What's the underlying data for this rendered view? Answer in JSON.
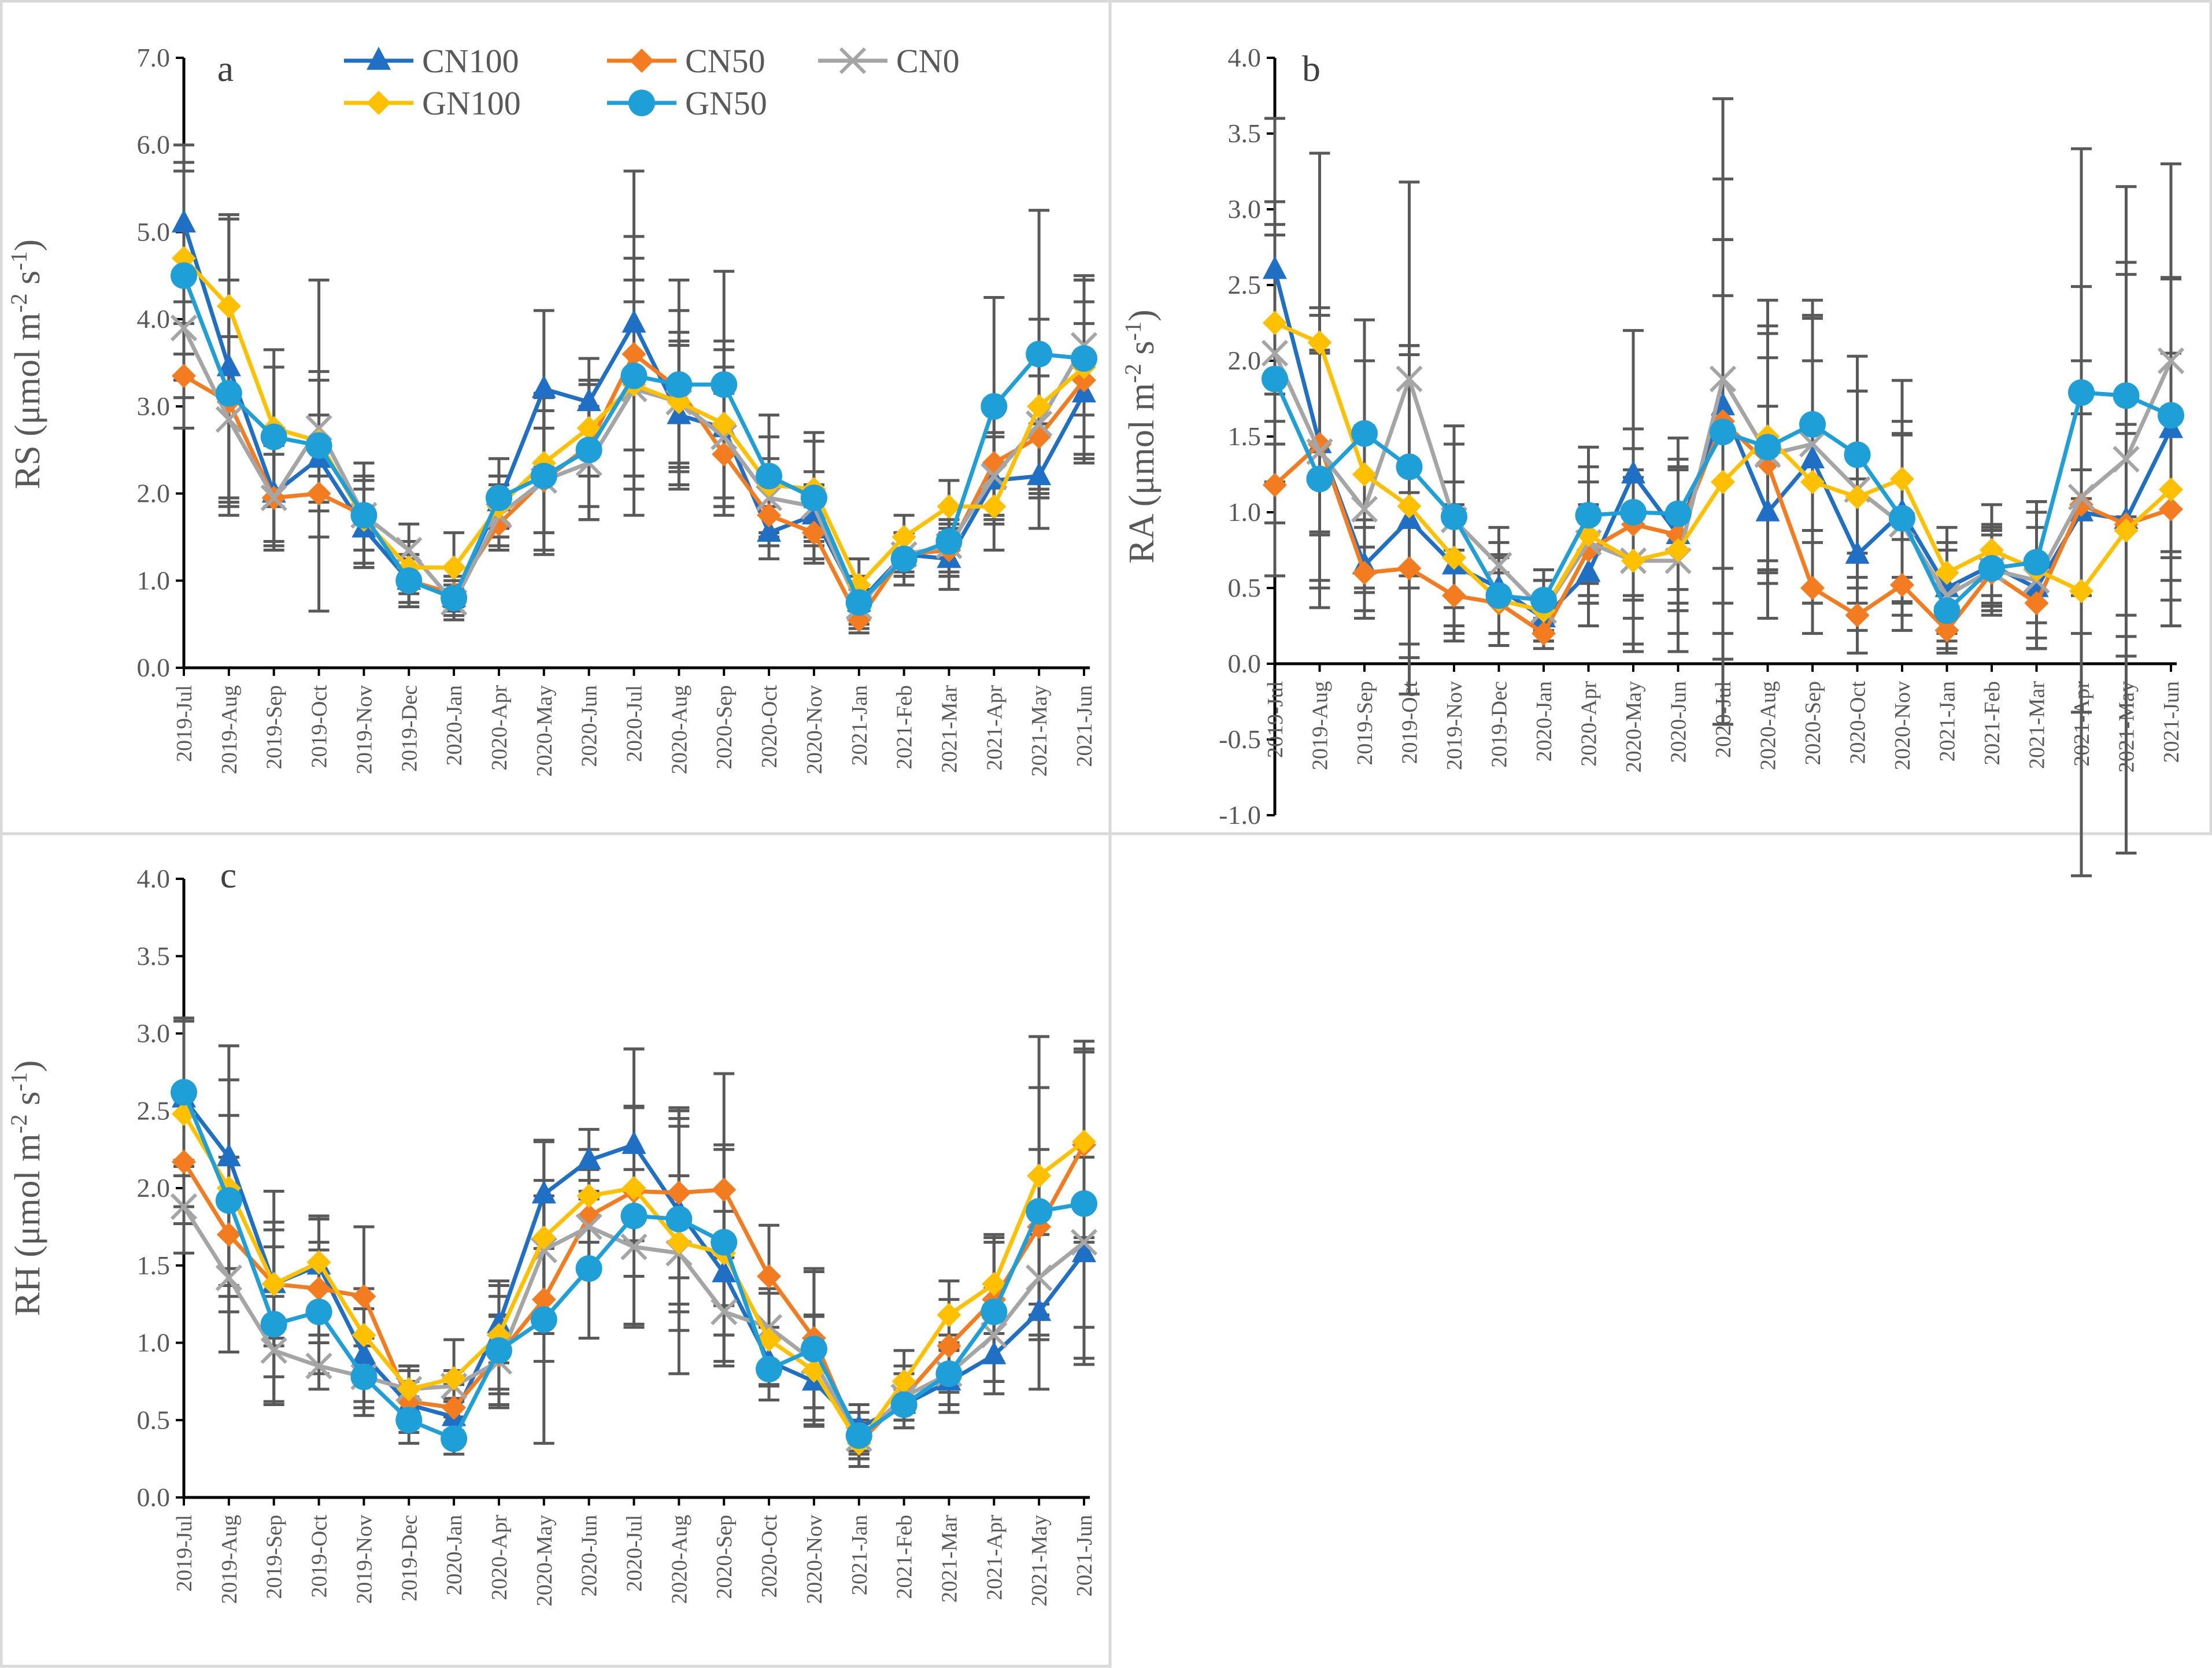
{
  "figure": {
    "series_colors": {
      "CN100": "#1F6FC5",
      "CN50": "#F47C20",
      "CN0": "#A5A5A5",
      "GN100": "#FFC000",
      "GN50": "#1F9FD8"
    },
    "errorbar_color": "#595959",
    "frame_color": "#D9D9D9"
  },
  "chart_data": [
    {
      "type": "line",
      "panel": "a",
      "ylabel": "RS (μmol m⁻² s⁻¹)",
      "ylabel_parts": {
        "main": "RS (μmol m",
        "sup1": "-2",
        "mid": " s",
        "sup2": "-1",
        "end": ")"
      },
      "ylim": [
        0,
        7
      ],
      "ystep": 1,
      "yticks": [
        "0.0",
        "1.0",
        "2.0",
        "3.0",
        "4.0",
        "5.0",
        "6.0",
        "7.0"
      ],
      "categories": [
        "2019-Jul",
        "2019-Aug",
        "2019-Sep",
        "2019-Oct",
        "2019-Nov",
        "2019-Dec",
        "2020-Jan",
        "2020-Apr",
        "2020-May",
        "2020-Jun",
        "2020-Jul",
        "2020-Aug",
        "2020-Sep",
        "2020-Oct",
        "2020-Nov",
        "2021-Jan",
        "2021-Feb",
        "2021-Mar",
        "2021-Apr",
        "2021-May",
        "2021-Jun"
      ],
      "legend": [
        "CN100",
        "CN50",
        "CN0",
        "GN100",
        "GN50"
      ],
      "series": [
        {
          "name": "CN100",
          "marker": "triangle",
          "values": [
            5.1,
            3.45,
            2.0,
            2.4,
            1.6,
            1.0,
            0.8,
            1.9,
            3.2,
            3.05,
            3.95,
            2.9,
            2.75,
            1.55,
            1.75,
            0.75,
            1.3,
            1.25,
            2.15,
            2.2,
            3.15
          ],
          "errors": [
            0.9,
            1.7,
            0.6,
            0.5,
            0.45,
            0.3,
            0.15,
            0.3,
            0.9,
            0.5,
            1.75,
            0.8,
            0.9,
            0.3,
            0.35,
            0.2,
            0.2,
            0.35,
            0.5,
            0.6,
            0.8
          ]
        },
        {
          "name": "CN50",
          "marker": "diamond",
          "values": [
            3.35,
            3.05,
            1.95,
            2.0,
            1.75,
            1.0,
            0.85,
            1.65,
            2.15,
            2.55,
            3.6,
            3.2,
            2.45,
            1.75,
            1.55,
            0.55,
            1.3,
            1.35,
            2.35,
            2.65,
            3.3
          ],
          "errors": [
            0.6,
            1.1,
            0.5,
            0.5,
            0.4,
            0.25,
            0.15,
            0.3,
            0.8,
            0.7,
            1.1,
            0.9,
            0.7,
            0.35,
            0.3,
            0.15,
            0.25,
            0.3,
            0.6,
            0.7,
            0.9
          ]
        },
        {
          "name": "CN0",
          "marker": "x",
          "values": [
            3.9,
            2.85,
            1.95,
            2.75,
            1.75,
            1.35,
            0.75,
            1.75,
            2.15,
            2.35,
            3.2,
            3.05,
            2.65,
            1.95,
            1.85,
            0.7,
            1.3,
            1.4,
            2.2,
            2.8,
            3.7
          ],
          "errors": [
            0.8,
            0.95,
            0.6,
            0.55,
            0.4,
            0.3,
            0.15,
            0.35,
            0.6,
            0.65,
            1.0,
            0.7,
            0.8,
            0.45,
            0.4,
            0.2,
            0.25,
            0.3,
            0.5,
            0.75,
            0.8
          ]
        },
        {
          "name": "GN100",
          "marker": "diamond",
          "values": [
            4.7,
            4.15,
            2.75,
            2.6,
            1.7,
            1.15,
            1.15,
            1.85,
            2.35,
            2.75,
            3.25,
            3.05,
            2.8,
            2.1,
            2.05,
            0.95,
            1.5,
            1.85,
            1.85,
            3.0,
            3.45
          ],
          "errors": [
            1.1,
            1.05,
            0.9,
            0.8,
            0.5,
            0.3,
            0.4,
            0.35,
            0.8,
            0.55,
            1.2,
            0.8,
            0.95,
            0.55,
            0.55,
            0.3,
            0.25,
            0.3,
            0.5,
            1.0,
            1.0
          ]
        },
        {
          "name": "GN50",
          "marker": "circle",
          "values": [
            4.5,
            3.15,
            2.65,
            2.55,
            1.75,
            1.0,
            0.8,
            1.95,
            2.2,
            2.5,
            3.35,
            3.25,
            3.25,
            2.2,
            1.95,
            0.75,
            1.25,
            1.45,
            3.0,
            3.6,
            3.55
          ],
          "errors": [
            1.2,
            1.3,
            0.8,
            1.9,
            0.6,
            0.3,
            0.25,
            0.45,
            0.9,
            0.8,
            1.6,
            1.2,
            1.3,
            0.7,
            0.75,
            0.3,
            0.3,
            0.4,
            1.25,
            1.65,
            0.9
          ]
        }
      ]
    },
    {
      "type": "line",
      "panel": "b",
      "ylabel": "RA (μmol m⁻² s⁻¹)",
      "ylabel_parts": {
        "main": "RA (μmol m",
        "sup1": "-2",
        "mid": " s",
        "sup2": "-1",
        "end": ")"
      },
      "ylim": [
        -1,
        4
      ],
      "ystep": 0.5,
      "yticks": [
        "-1.0",
        "-0.5",
        "0.0",
        "0.5",
        "1.0",
        "1.5",
        "2.0",
        "2.5",
        "3.0",
        "3.5",
        "4.0"
      ],
      "categories": [
        "2019-Jul",
        "2019-Aug",
        "2019-Sep",
        "2019-Oct",
        "2019-Nov",
        "2019-Dec",
        "2020-Jan",
        "2020-Apr",
        "2020-May",
        "2020-Jun",
        "2020-Jul",
        "2020-Aug",
        "2020-Sep",
        "2020-Oct",
        "2020-Nov",
        "2021-Jan",
        "2021-Feb",
        "2021-Mar",
        "2021-Apr",
        "2021-May",
        "2021-Jun"
      ],
      "series": [
        {
          "name": "CN100",
          "marker": "triangle",
          "values": [
            2.6,
            1.45,
            0.65,
            0.95,
            0.65,
            0.5,
            0.3,
            0.6,
            1.25,
            0.85,
            1.7,
            1.0,
            1.35,
            0.72,
            1.0,
            0.5,
            0.65,
            0.5,
            1.0,
            0.95,
            1.55
          ],
          "errors": [
            1.0,
            0.9,
            0.3,
            1.15,
            0.4,
            0.3,
            0.15,
            0.35,
            0.95,
            0.45,
            1.5,
            0.7,
            0.95,
            0.5,
            0.6,
            0.3,
            0.25,
            0.4,
            2.4,
            2.2,
            1.0
          ]
        },
        {
          "name": "CN50",
          "marker": "diamond",
          "values": [
            1.18,
            1.45,
            0.6,
            0.63,
            0.45,
            0.4,
            0.2,
            0.75,
            0.92,
            0.85,
            1.6,
            1.32,
            0.5,
            0.32,
            0.52,
            0.22,
            0.6,
            0.4,
            1.05,
            0.92,
            1.02
          ],
          "errors": [
            0.6,
            0.6,
            0.3,
            0.5,
            0.3,
            0.2,
            0.1,
            0.3,
            0.5,
            0.5,
            1.2,
            0.7,
            0.3,
            0.25,
            0.3,
            0.15,
            0.25,
            0.3,
            0.6,
            0.6,
            0.6
          ]
        },
        {
          "name": "CN0",
          "marker": "x",
          "values": [
            2.05,
            1.4,
            1.02,
            1.88,
            0.95,
            0.65,
            0.35,
            0.8,
            0.68,
            0.68,
            1.88,
            1.38,
            1.45,
            1.15,
            0.92,
            0.45,
            0.62,
            0.55,
            1.1,
            1.35,
            2.0
          ],
          "errors": [
            0.85,
            0.9,
            0.55,
            1.3,
            0.5,
            0.25,
            0.2,
            0.4,
            0.55,
            0.6,
            1.85,
            0.85,
            0.95,
            0.65,
            0.6,
            0.3,
            0.3,
            0.45,
            0.9,
            1.3,
            1.3
          ]
        },
        {
          "name": "GN100",
          "marker": "diamond",
          "values": [
            2.25,
            2.12,
            1.25,
            1.04,
            0.7,
            0.42,
            0.35,
            0.85,
            0.68,
            0.75,
            1.2,
            1.5,
            1.2,
            1.1,
            1.22,
            0.6,
            0.75,
            0.62,
            0.48,
            0.88,
            1.15
          ],
          "errors": [
            0.8,
            1.25,
            0.75,
            1.0,
            0.5,
            0.3,
            0.2,
            0.45,
            0.6,
            0.55,
            1.6,
            0.9,
            0.8,
            0.7,
            0.65,
            0.3,
            0.3,
            0.45,
            0.8,
            0.7,
            0.9
          ]
        },
        {
          "name": "GN50",
          "marker": "circle",
          "values": [
            1.88,
            1.22,
            1.52,
            1.3,
            0.97,
            0.45,
            0.42,
            0.98,
            1.0,
            0.99,
            1.53,
            1.43,
            1.58,
            1.38,
            0.96,
            0.35,
            0.63,
            0.67,
            1.79,
            1.77,
            1.64
          ],
          "errors": [
            0.95,
            0.85,
            0.75,
            0.8,
            0.6,
            0.25,
            0.2,
            0.45,
            0.55,
            0.5,
            0.9,
            0.75,
            0.7,
            0.65,
            0.55,
            0.25,
            0.25,
            0.4,
            0.7,
            0.8,
            0.9
          ]
        }
      ]
    },
    {
      "type": "line",
      "panel": "c",
      "ylabel": "RH (μmol m⁻² s⁻¹)",
      "ylabel_parts": {
        "main": "RH (μmol m",
        "sup1": "-2",
        "mid": " s",
        "sup2": "-1",
        "end": ")"
      },
      "ylim": [
        0,
        4
      ],
      "ystep": 0.5,
      "yticks": [
        "0.0",
        "0.5",
        "1.0",
        "1.5",
        "2.0",
        "2.5",
        "3.0",
        "3.5",
        "4.0"
      ],
      "categories": [
        "2019-Jul",
        "2019-Aug",
        "2019-Sep",
        "2019-Oct",
        "2019-Nov",
        "2019-Dec",
        "2020-Jan",
        "2020-Apr",
        "2020-May",
        "2020-Jun",
        "2020-Jul",
        "2020-Aug",
        "2020-Sep",
        "2020-Oct",
        "2020-Nov",
        "2021-Jan",
        "2021-Feb",
        "2021-Mar",
        "2021-Apr",
        "2021-May",
        "2021-Jun"
      ],
      "series": [
        {
          "name": "CN100",
          "marker": "triangle",
          "values": [
            2.58,
            2.2,
            1.38,
            1.5,
            0.92,
            0.6,
            0.52,
            1.12,
            1.96,
            2.18,
            2.28,
            1.85,
            1.45,
            0.88,
            0.75,
            0.45,
            0.6,
            0.75,
            0.92,
            1.2,
            1.58
          ],
          "errors": [
            0.5,
            0.72,
            0.35,
            0.3,
            0.3,
            0.15,
            0.12,
            0.25,
            0.35,
            0.2,
            0.62,
            0.6,
            0.4,
            0.15,
            0.25,
            0.15,
            0.1,
            0.2,
            0.25,
            0.5,
            0.72
          ]
        },
        {
          "name": "CN50",
          "marker": "diamond",
          "values": [
            2.17,
            1.7,
            1.38,
            1.35,
            1.3,
            0.62,
            0.58,
            0.92,
            1.28,
            1.82,
            1.98,
            1.97,
            1.99,
            1.43,
            1.03,
            0.35,
            0.65,
            0.98,
            1.28,
            1.75,
            2.28
          ],
          "errors": [
            0.4,
            0.5,
            0.4,
            0.3,
            0.45,
            0.2,
            0.15,
            0.25,
            0.4,
            0.3,
            0.55,
            0.55,
            0.75,
            0.33,
            0.45,
            0.1,
            0.2,
            0.3,
            0.4,
            0.5,
            0.6
          ]
        },
        {
          "name": "CN0",
          "marker": "x",
          "values": [
            1.88,
            1.42,
            0.95,
            0.85,
            0.78,
            0.7,
            0.72,
            0.88,
            1.6,
            1.75,
            1.62,
            1.58,
            1.2,
            1.1,
            0.88,
            0.38,
            0.65,
            0.8,
            1.05,
            1.42,
            1.65
          ],
          "errors": [
            0.3,
            0.48,
            0.35,
            0.15,
            0.2,
            0.15,
            0.1,
            0.3,
            0.45,
            0.3,
            0.5,
            0.5,
            0.35,
            0.25,
            0.3,
            0.1,
            0.15,
            0.2,
            0.3,
            0.4,
            0.55
          ]
        },
        {
          "name": "GN100",
          "marker": "diamond",
          "values": [
            2.48,
            2.0,
            1.38,
            1.52,
            1.05,
            0.7,
            0.77,
            1.05,
            1.68,
            1.95,
            2.0,
            1.65,
            1.58,
            1.02,
            0.82,
            0.35,
            0.75,
            1.18,
            1.38,
            2.08,
            2.3
          ],
          "errors": [
            0.6,
            0.7,
            0.6,
            0.3,
            0.3,
            0.15,
            0.25,
            0.35,
            0.62,
            0.3,
            0.9,
            0.85,
            0.7,
            0.3,
            0.35,
            0.15,
            0.2,
            0.22,
            0.32,
            0.9,
            0.65
          ]
        },
        {
          "name": "GN50",
          "marker": "circle",
          "values": [
            2.62,
            1.92,
            1.12,
            1.2,
            0.78,
            0.5,
            0.38,
            0.95,
            1.15,
            1.48,
            1.82,
            1.8,
            1.65,
            0.83,
            0.96,
            0.4,
            0.6,
            0.8,
            1.2,
            1.85,
            1.9
          ],
          "errors": [
            0.48,
            0.55,
            0.5,
            0.4,
            0.25,
            0.15,
            0.1,
            0.35,
            0.8,
            0.45,
            0.7,
            0.6,
            0.6,
            0.2,
            0.5,
            0.15,
            0.15,
            0.25,
            0.45,
            0.8,
            1.0
          ]
        }
      ]
    }
  ]
}
